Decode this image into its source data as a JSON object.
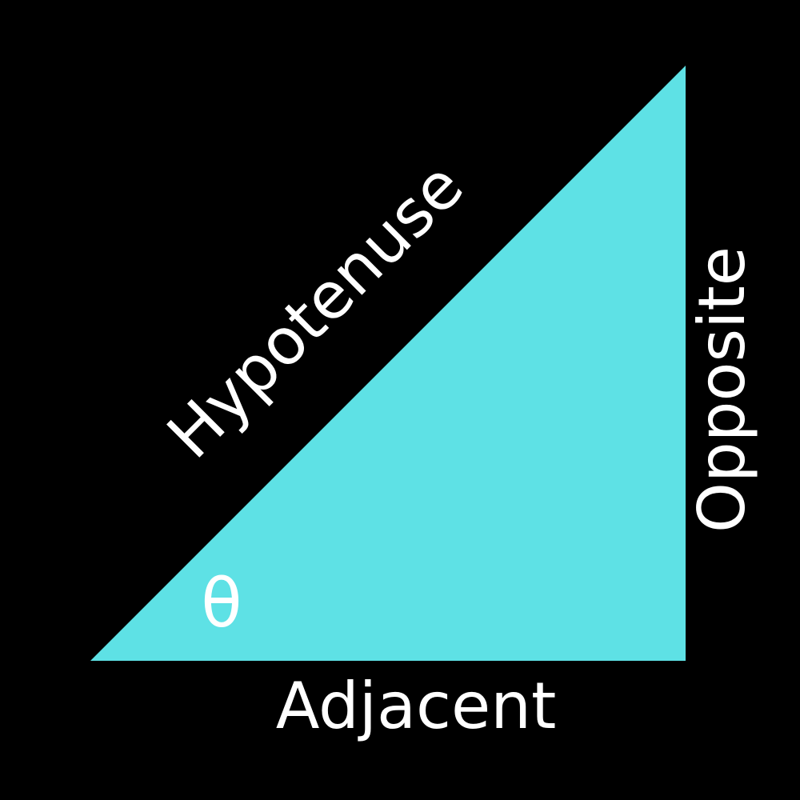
{
  "colors": {
    "background": "#000000",
    "triangle_fill": "#5ee1e5",
    "text": "#ffffff"
  },
  "labels": {
    "hypotenuse": "Hypotenuse",
    "opposite": "Opposite",
    "adjacent": "Adjacent",
    "angle": "θ"
  }
}
